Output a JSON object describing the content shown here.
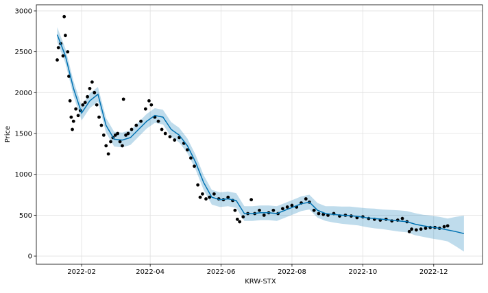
{
  "chart_data": {
    "type": "line",
    "xlabel": "KRW-STX",
    "ylabel": "Price",
    "grid": true,
    "xlim": [
      "2021-12-24",
      "2023-01-12"
    ],
    "xticks": [
      {
        "value": "2022-02-01",
        "label": "2022-02"
      },
      {
        "value": "2022-04-01",
        "label": "2022-04"
      },
      {
        "value": "2022-06-01",
        "label": "2022-06"
      },
      {
        "value": "2022-08-01",
        "label": "2022-08"
      },
      {
        "value": "2022-10-01",
        "label": "2022-10"
      },
      {
        "value": "2022-12-01",
        "label": "2022-12"
      }
    ],
    "ylim": [
      -100,
      3075
    ],
    "yticks": [
      0,
      500,
      1000,
      1500,
      2000,
      2500,
      3000
    ],
    "observed": {
      "color": "#000000",
      "x": [
        "2022-01-11",
        "2022-01-12",
        "2022-01-14",
        "2022-01-16",
        "2022-01-17",
        "2022-01-18",
        "2022-01-20",
        "2022-01-21",
        "2022-01-22",
        "2022-01-23",
        "2022-01-24",
        "2022-01-25",
        "2022-01-27",
        "2022-01-29",
        "2022-01-31",
        "2022-02-02",
        "2022-02-04",
        "2022-02-06",
        "2022-02-08",
        "2022-02-10",
        "2022-02-12",
        "2022-02-14",
        "2022-02-16",
        "2022-02-18",
        "2022-02-20",
        "2022-02-22",
        "2022-02-24",
        "2022-02-26",
        "2022-02-28",
        "2022-03-02",
        "2022-03-04",
        "2022-03-06",
        "2022-03-08",
        "2022-03-09",
        "2022-03-11",
        "2022-03-13",
        "2022-03-16",
        "2022-03-20",
        "2022-03-24",
        "2022-03-28",
        "2022-03-31",
        "2022-04-02",
        "2022-04-05",
        "2022-04-08",
        "2022-04-11",
        "2022-04-14",
        "2022-04-18",
        "2022-04-22",
        "2022-04-26",
        "2022-04-30",
        "2022-05-03",
        "2022-05-06",
        "2022-05-09",
        "2022-05-12",
        "2022-05-14",
        "2022-05-16",
        "2022-05-19",
        "2022-05-22",
        "2022-05-26",
        "2022-05-30",
        "2022-06-03",
        "2022-06-07",
        "2022-06-11",
        "2022-06-13",
        "2022-06-15",
        "2022-06-17",
        "2022-06-20",
        "2022-06-24",
        "2022-06-27",
        "2022-06-30",
        "2022-07-04",
        "2022-07-08",
        "2022-07-12",
        "2022-07-16",
        "2022-07-20",
        "2022-07-24",
        "2022-07-28",
        "2022-08-01",
        "2022-08-05",
        "2022-08-09",
        "2022-08-13",
        "2022-08-16",
        "2022-08-20",
        "2022-08-24",
        "2022-08-28",
        "2022-09-01",
        "2022-09-06",
        "2022-09-11",
        "2022-09-16",
        "2022-09-21",
        "2022-09-26",
        "2022-10-01",
        "2022-10-06",
        "2022-10-11",
        "2022-10-16",
        "2022-10-21",
        "2022-10-26",
        "2022-10-31",
        "2022-11-04",
        "2022-11-08",
        "2022-11-10",
        "2022-11-12",
        "2022-11-16",
        "2022-11-20",
        "2022-11-24",
        "2022-11-28",
        "2022-12-02",
        "2022-12-06",
        "2022-12-10",
        "2022-12-13"
      ],
      "values": [
        2400,
        2550,
        2600,
        2450,
        2930,
        2700,
        2500,
        2200,
        1900,
        1700,
        1550,
        1650,
        1800,
        1720,
        1780,
        1850,
        1880,
        1950,
        2050,
        2130,
        2000,
        1850,
        1700,
        1600,
        1480,
        1350,
        1250,
        1400,
        1450,
        1480,
        1500,
        1400,
        1350,
        1920,
        1480,
        1500,
        1550,
        1600,
        1650,
        1800,
        1900,
        1850,
        1700,
        1650,
        1550,
        1500,
        1460,
        1420,
        1450,
        1380,
        1300,
        1200,
        1100,
        870,
        720,
        760,
        700,
        720,
        760,
        700,
        690,
        720,
        680,
        560,
        450,
        420,
        480,
        520,
        690,
        520,
        560,
        500,
        530,
        560,
        520,
        580,
        600,
        620,
        600,
        650,
        700,
        660,
        560,
        520,
        510,
        500,
        520,
        490,
        500,
        490,
        470,
        480,
        460,
        450,
        440,
        450,
        430,
        440,
        460,
        420,
        300,
        330,
        320,
        330,
        340,
        350,
        350,
        340,
        360,
        370
      ]
    },
    "forecast": {
      "color": "#0072b2",
      "band_color": "#0072b2",
      "x": [
        "2022-01-11",
        "2022-01-18",
        "2022-01-25",
        "2022-02-01",
        "2022-02-08",
        "2022-02-15",
        "2022-02-22",
        "2022-03-01",
        "2022-03-08",
        "2022-03-15",
        "2022-03-22",
        "2022-03-29",
        "2022-04-05",
        "2022-04-12",
        "2022-04-19",
        "2022-04-26",
        "2022-05-03",
        "2022-05-10",
        "2022-05-17",
        "2022-05-24",
        "2022-05-31",
        "2022-06-07",
        "2022-06-14",
        "2022-06-21",
        "2022-06-28",
        "2022-07-05",
        "2022-07-12",
        "2022-07-19",
        "2022-07-26",
        "2022-08-02",
        "2022-08-09",
        "2022-08-16",
        "2022-08-23",
        "2022-08-30",
        "2022-09-06",
        "2022-09-13",
        "2022-09-20",
        "2022-09-27",
        "2022-10-04",
        "2022-10-11",
        "2022-10-18",
        "2022-10-25",
        "2022-11-01",
        "2022-11-08",
        "2022-11-15",
        "2022-11-22",
        "2022-11-29",
        "2022-12-06",
        "2022-12-13",
        "2022-12-20",
        "2022-12-27"
      ],
      "values": [
        2710,
        2450,
        2050,
        1750,
        1900,
        1980,
        1600,
        1430,
        1420,
        1450,
        1550,
        1650,
        1720,
        1700,
        1550,
        1480,
        1350,
        1150,
        900,
        720,
        690,
        700,
        680,
        520,
        520,
        530,
        530,
        520,
        560,
        600,
        640,
        660,
        560,
        520,
        510,
        500,
        495,
        485,
        470,
        460,
        450,
        440,
        430,
        420,
        390,
        370,
        355,
        340,
        320,
        300,
        275
      ],
      "lower": [
        2620,
        2360,
        1960,
        1660,
        1810,
        1890,
        1510,
        1340,
        1330,
        1360,
        1460,
        1560,
        1630,
        1610,
        1460,
        1390,
        1260,
        1060,
        810,
        630,
        600,
        610,
        590,
        430,
        430,
        440,
        440,
        430,
        470,
        510,
        550,
        570,
        470,
        430,
        410,
        395,
        385,
        375,
        355,
        340,
        330,
        315,
        300,
        290,
        255,
        235,
        215,
        200,
        180,
        120,
        55
      ],
      "upper": [
        2800,
        2540,
        2140,
        1840,
        1990,
        2070,
        1690,
        1520,
        1510,
        1540,
        1640,
        1740,
        1810,
        1790,
        1640,
        1570,
        1440,
        1240,
        990,
        810,
        780,
        790,
        770,
        610,
        610,
        620,
        620,
        610,
        650,
        690,
        730,
        750,
        650,
        610,
        610,
        605,
        605,
        595,
        585,
        580,
        570,
        565,
        560,
        550,
        525,
        505,
        495,
        480,
        460,
        480,
        495
      ]
    }
  }
}
